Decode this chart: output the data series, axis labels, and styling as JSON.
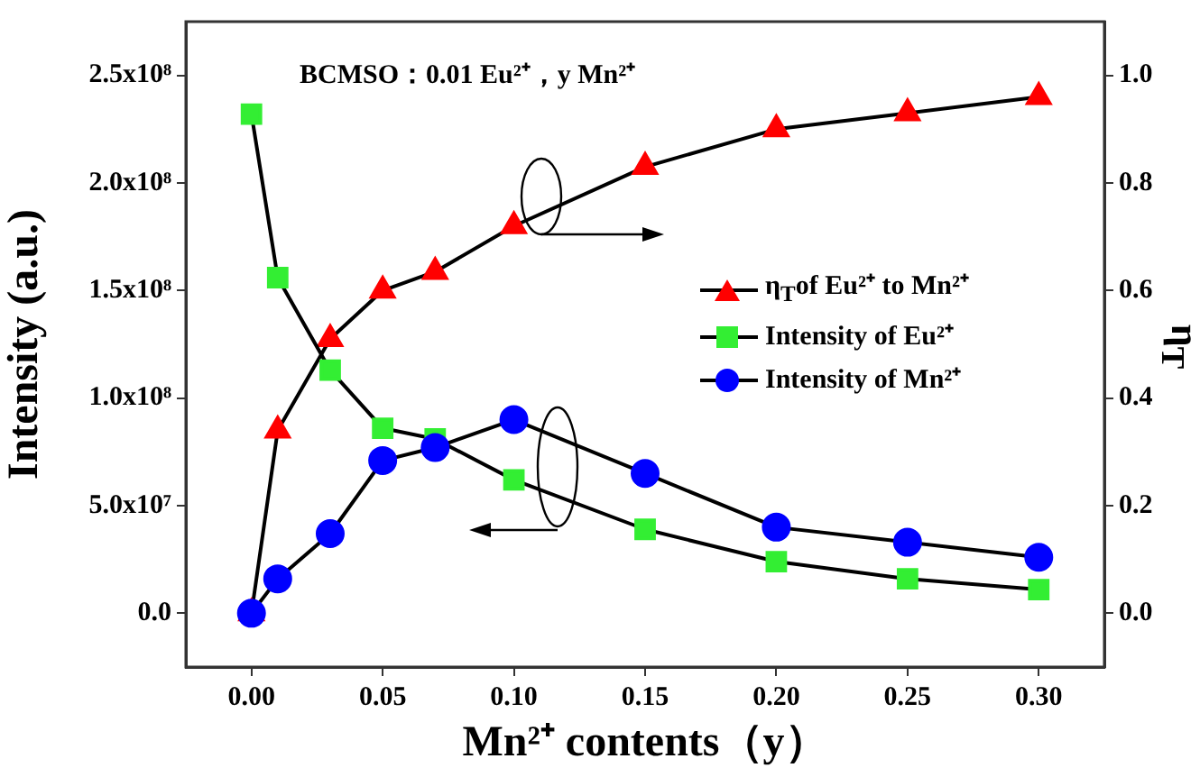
{
  "chart_data": {
    "type": "line",
    "xlabel": "Mn²⁺ contents（y）",
    "ylabel": "Intensity (a.u.)",
    "y2label": "η$_{T}$",
    "annotations": [
      "BCMSO：0.01 Eu²⁺，y Mn²⁺"
    ],
    "x": [
      0,
      0.01,
      0.03,
      0.05,
      0.07,
      0.1,
      0.15,
      0.2,
      0.25,
      0.3
    ],
    "series": [
      {
        "name": "η$_{T}$of Eu²⁺ to Mn²⁺",
        "color": "#ff0000",
        "marker": "triangle",
        "axis": "y2",
        "values": [
          0,
          0.34,
          0.51,
          0.6,
          0.635,
          0.72,
          0.83,
          0.9,
          0.93,
          0.96
        ]
      },
      {
        "name": "Intensity of Eu²⁺",
        "color": "#33ee33",
        "marker": "square",
        "values": [
          232000000,
          156000000,
          113000000,
          86000000,
          81000000,
          62000000,
          39000000,
          24000000,
          16000000,
          11000000
        ]
      },
      {
        "name": "Intensity of Mn²⁺",
        "color": "#0000ff",
        "marker": "circle",
        "values": [
          0,
          16000000,
          37000000,
          71000000,
          77000000,
          90000000,
          65000000,
          40000000,
          33000000,
          26000000
        ]
      }
    ],
    "xlim": [
      -0.025,
      0.325
    ],
    "xticks": [
      {
        "value": 0,
        "label": "0.00"
      },
      {
        "value": 0.05,
        "label": "0.05"
      },
      {
        "value": 0.1,
        "label": "0.10"
      },
      {
        "value": 0.15,
        "label": "0.15"
      },
      {
        "value": 0.2,
        "label": "0.20"
      },
      {
        "value": 0.25,
        "label": "0.25"
      },
      {
        "value": 0.3,
        "label": "0.30"
      }
    ],
    "ylim": [
      -25000000,
      275000000
    ],
    "yticks": [
      {
        "value": 0,
        "label": "0.0"
      },
      {
        "value": 50000000,
        "label": "5.0x10⁷"
      },
      {
        "value": 100000000,
        "label": "1.0x10⁸"
      },
      {
        "value": 150000000,
        "label": "1.5x10⁸"
      },
      {
        "value": 200000000,
        "label": "2.0x10⁸"
      },
      {
        "value": 250000000,
        "label": "2.5x10⁸"
      }
    ],
    "y2lim": [
      -0.1,
      1.1
    ],
    "y2ticks": [
      {
        "value": 0,
        "label": "0.0"
      },
      {
        "value": 0.2,
        "label": "0.2"
      },
      {
        "value": 0.4,
        "label": "0.4"
      },
      {
        "value": 0.6,
        "label": "0.6"
      },
      {
        "value": 0.8,
        "label": "0.8"
      },
      {
        "value": 1,
        "label": "1.0"
      }
    ],
    "grid": false,
    "legend": "right"
  }
}
